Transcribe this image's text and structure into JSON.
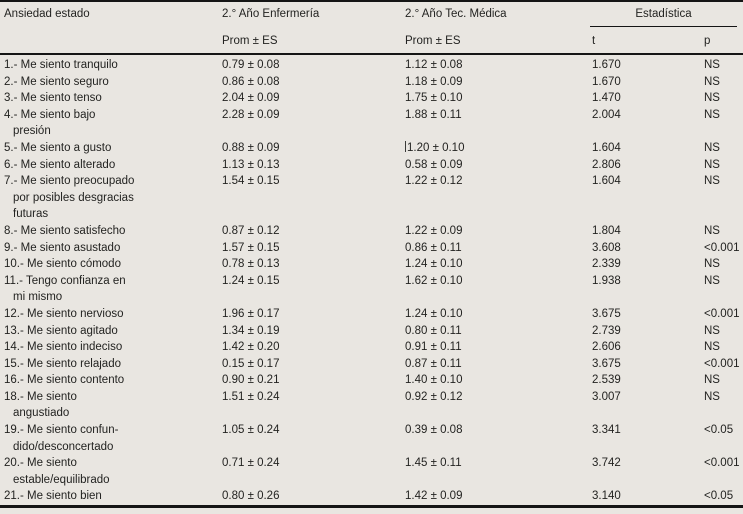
{
  "colors": {
    "background": "#e9e6e1",
    "text": "#232321",
    "rule": "#151515"
  },
  "table": {
    "header": {
      "col_item": "Ansiedad estado",
      "col_enfermeria": "2.° Año Enfermería",
      "col_tec_medica": "2.° Año Tec. Médica",
      "col_stats": "Estadística",
      "sub_prom_enfermeria": "Prom ± ES",
      "sub_prom_tec_medica": "Prom ± ES",
      "sub_t": "t",
      "sub_p": "p"
    },
    "rows": [
      {
        "label_lines": [
          "1.- Me siento tranquilo"
        ],
        "enfermeria": "0.79 ± 0.08",
        "tec_medica": "1.12 ± 0.08",
        "t": "1.670",
        "p": "NS"
      },
      {
        "label_lines": [
          "2.- Me siento seguro"
        ],
        "enfermeria": "0.86 ± 0.08",
        "tec_medica": "1.18 ± 0.09",
        "t": "1.670",
        "p": "NS"
      },
      {
        "label_lines": [
          "3.- Me siento tenso"
        ],
        "enfermeria": "2.04 ± 0.09",
        "tec_medica": "1.75 ± 0.10",
        "t": "1.470",
        "p": "NS"
      },
      {
        "label_lines": [
          "4.- Me siento bajo",
          "presión"
        ],
        "enfermeria": "2.28 ± 0.09",
        "tec_medica": "1.88 ± 0.11",
        "t": "2.004",
        "p": "NS"
      },
      {
        "label_lines": [
          "5.- Me siento a gusto"
        ],
        "enfermeria": "0.88 ± 0.09",
        "tec_medica": "1.20 ± 0.10",
        "t": "1.604",
        "p": "NS",
        "cursor_artifact": true
      },
      {
        "label_lines": [
          "6.- Me siento alterado"
        ],
        "enfermeria": "1.13 ± 0.13",
        "tec_medica": "0.58 ± 0.09",
        "t": "2.806",
        "p": "NS"
      },
      {
        "label_lines": [
          "7.- Me siento preocupado",
          "por posibles desgracias",
          "futuras"
        ],
        "enfermeria": "1.54 ± 0.15",
        "tec_medica": "1.22 ± 0.12",
        "t": "1.604",
        "p": "NS"
      },
      {
        "label_lines": [
          "8.- Me siento satisfecho"
        ],
        "enfermeria": "0.87 ± 0.12",
        "tec_medica": "1.22 ± 0.09",
        "t": "1.804",
        "p": "NS"
      },
      {
        "label_lines": [
          "9.- Me siento asustado"
        ],
        "enfermeria": "1.57 ± 0.15",
        "tec_medica": "0.86 ± 0.11",
        "t": "3.608",
        "p": "<0.001"
      },
      {
        "label_lines": [
          "10.- Me siento cómodo"
        ],
        "enfermeria": "0.78 ± 0.13",
        "tec_medica": "1.24 ± 0.10",
        "t": "2.339",
        "p": "NS"
      },
      {
        "label_lines": [
          "11.- Tengo confianza en",
          "mi mismo"
        ],
        "enfermeria": "1.24 ± 0.15",
        "tec_medica": "1.62 ± 0.10",
        "t": "1.938",
        "p": "NS"
      },
      {
        "label_lines": [
          "12.- Me siento nervioso"
        ],
        "enfermeria": "1.96 ± 0.17",
        "tec_medica": "1.24 ± 0.10",
        "t": "3.675",
        "p": "<0.001"
      },
      {
        "label_lines": [
          "13.- Me siento agitado"
        ],
        "enfermeria": "1.34 ± 0.19",
        "tec_medica": "0.80 ± 0.11",
        "t": "2.739",
        "p": "NS"
      },
      {
        "label_lines": [
          "14.- Me siento indeciso"
        ],
        "enfermeria": "1.42 ± 0.20",
        "tec_medica": "0.91 ± 0.11",
        "t": "2.606",
        "p": "NS"
      },
      {
        "label_lines": [
          "15.- Me siento relajado"
        ],
        "enfermeria": "0.15 ± 0.17",
        "tec_medica": "0.87 ± 0.11",
        "t": "3.675",
        "p": "<0.001"
      },
      {
        "label_lines": [
          "16.- Me siento contento"
        ],
        "enfermeria": "0.90 ± 0.21",
        "tec_medica": "1.40 ± 0.10",
        "t": "2.539",
        "p": "NS"
      },
      {
        "label_lines": [
          "18.- Me siento",
          "angustiado"
        ],
        "enfermeria": "1.51 ± 0.24",
        "tec_medica": "0.92 ± 0.12",
        "t": "3.007",
        "p": "NS"
      },
      {
        "label_lines": [
          "19.- Me siento confun-",
          "dido/desconcertado"
        ],
        "enfermeria": "1.05 ± 0.24",
        "tec_medica": "0.39 ± 0.08",
        "t": "3.341",
        "p": "<0.05"
      },
      {
        "label_lines": [
          "20.- Me siento",
          "estable/equilibrado"
        ],
        "enfermeria": "0.71 ± 0.24",
        "tec_medica": "1.45 ± 0.11",
        "t": "3.742",
        "p": "<0.001"
      },
      {
        "label_lines": [
          "21.- Me siento bien"
        ],
        "enfermeria": "0.80 ± 0.26",
        "tec_medica": "1.42 ± 0.09",
        "t": "3.140",
        "p": "<0.05"
      }
    ]
  }
}
